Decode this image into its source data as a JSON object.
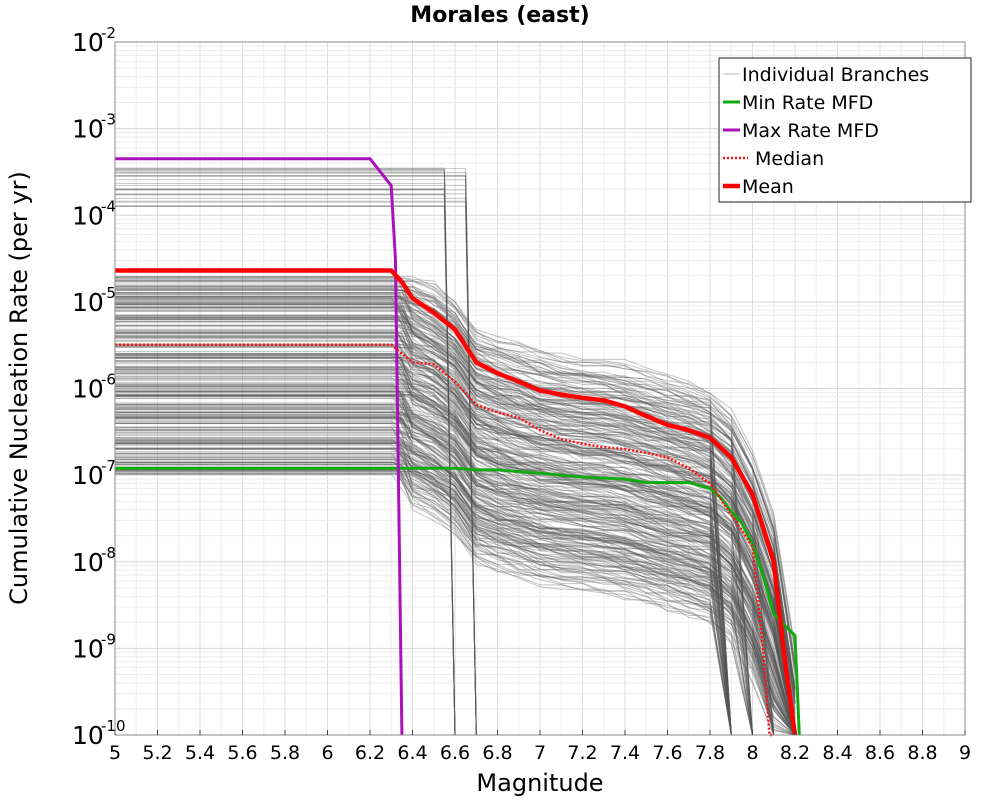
{
  "chart_data": {
    "type": "line",
    "title": "Morales (east)",
    "xlabel": "Magnitude",
    "ylabel": "Cumulative Nucleation Rate (per yr)",
    "xlim": [
      5,
      9
    ],
    "ylim": [
      1e-10,
      0.01
    ],
    "yscale": "log",
    "grid": true,
    "legend_position": "top-right",
    "x_ticks": [
      "5",
      "5.2",
      "5.4",
      "5.6",
      "5.8",
      "6",
      "6.2",
      "6.4",
      "6.6",
      "6.8",
      "7",
      "7.2",
      "7.4",
      "7.6",
      "7.8",
      "8",
      "8.2",
      "8.4",
      "8.6",
      "8.8",
      "9"
    ],
    "y_ticks": [
      {
        "base": "10",
        "exp": "-10"
      },
      {
        "base": "10",
        "exp": "-9"
      },
      {
        "base": "10",
        "exp": "-8"
      },
      {
        "base": "10",
        "exp": "-7"
      },
      {
        "base": "10",
        "exp": "-6"
      },
      {
        "base": "10",
        "exp": "-5"
      },
      {
        "base": "10",
        "exp": "-4"
      },
      {
        "base": "10",
        "exp": "-3"
      },
      {
        "base": "10",
        "exp": "-2"
      }
    ],
    "legend": [
      {
        "label": "Individual Branches",
        "color": "#bbbbbb",
        "style": "thin"
      },
      {
        "label": "Min Rate MFD",
        "color": "#11aa11",
        "style": "solid"
      },
      {
        "label": "Max Rate MFD",
        "color": "#aa11bb",
        "style": "solid"
      },
      {
        "label": "Median",
        "color": "#ff1111",
        "style": "dotted"
      },
      {
        "label": "Mean",
        "color": "#ff0000",
        "style": "thick"
      }
    ],
    "series": [
      {
        "name": "Min Rate MFD",
        "color": "#11aa11",
        "x": [
          5.0,
          6.2,
          6.4,
          6.6,
          6.7,
          6.8,
          7.0,
          7.2,
          7.4,
          7.5,
          7.6,
          7.7,
          7.8,
          7.85,
          7.9,
          7.95,
          8.0,
          8.05,
          8.1,
          8.2,
          8.22
        ],
        "y": [
          1.2e-07,
          1.2e-07,
          1.2e-07,
          1.2e-07,
          1.15e-07,
          1.15e-07,
          1.05e-07,
          9.5e-08,
          9e-08,
          8.2e-08,
          8.2e-08,
          8.2e-08,
          7e-08,
          5.5e-08,
          3.8e-08,
          2.8e-08,
          1.6e-08,
          7e-09,
          2.5e-09,
          1.4e-09,
          1e-10
        ]
      },
      {
        "name": "Max Rate MFD",
        "color": "#aa11bb",
        "x": [
          5.0,
          6.2,
          6.3,
          6.32,
          6.35
        ],
        "y": [
          0.00045,
          0.00045,
          0.00022,
          3e-05,
          1e-10
        ]
      },
      {
        "name": "Median",
        "color": "#ff1111",
        "x": [
          5.0,
          6.3,
          6.4,
          6.5,
          6.6,
          6.7,
          6.8,
          6.9,
          7.0,
          7.1,
          7.2,
          7.3,
          7.4,
          7.5,
          7.6,
          7.7,
          7.8,
          7.9,
          8.0,
          8.05,
          8.08,
          8.1
        ],
        "y": [
          3.2e-06,
          3.2e-06,
          2e-06,
          1.9e-06,
          1.2e-06,
          6.5e-07,
          5.3e-07,
          4.6e-07,
          3.3e-07,
          2.6e-07,
          2.3e-07,
          2.1e-07,
          2e-07,
          1.8e-07,
          1.6e-07,
          1.2e-07,
          8e-08,
          3.5e-08,
          1.5e-08,
          1e-09,
          1e-10,
          1e-10
        ]
      },
      {
        "name": "Mean",
        "color": "#ff0000",
        "x": [
          5.0,
          6.3,
          6.35,
          6.4,
          6.5,
          6.6,
          6.7,
          6.8,
          6.9,
          7.0,
          7.1,
          7.2,
          7.3,
          7.4,
          7.5,
          7.6,
          7.7,
          7.8,
          7.9,
          8.0,
          8.05,
          8.1,
          8.15,
          8.2
        ],
        "y": [
          2.3e-05,
          2.3e-05,
          1.7e-05,
          1.1e-05,
          7.5e-06,
          4.8e-06,
          2e-06,
          1.5e-06,
          1.2e-06,
          9.5e-07,
          8.5e-07,
          7.8e-07,
          7.3e-07,
          6.2e-07,
          4.8e-07,
          3.8e-07,
          3.3e-07,
          2.7e-07,
          1.6e-07,
          6e-08,
          2.5e-08,
          1e-08,
          8e-10,
          1e-10
        ]
      }
    ]
  }
}
